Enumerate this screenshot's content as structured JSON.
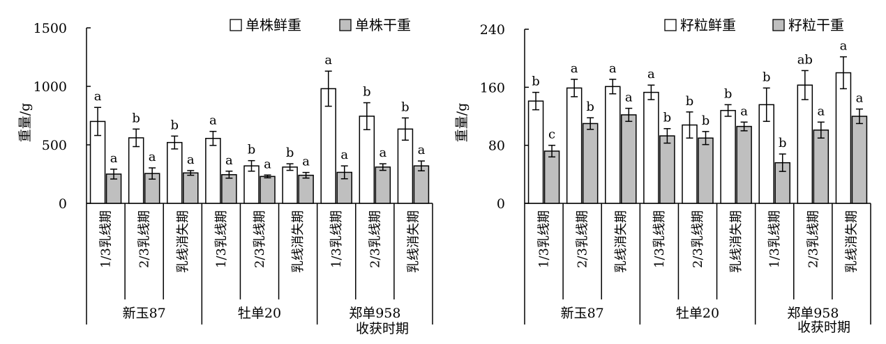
{
  "chart_data": [
    {
      "type": "bar",
      "ylabel": "重量/g",
      "xlabel": "收获时期",
      "ylim": [
        0,
        1500
      ],
      "yticks": [
        "0",
        "500",
        "1000",
        "1500"
      ],
      "groups": [
        "新玉87",
        "牡单20",
        "郑单958"
      ],
      "categories": [
        "1/3乳线期",
        "2/3乳线期",
        "乳线消失期",
        "1/3乳线期",
        "2/3乳线期",
        "乳线消失期",
        "1/3乳线期",
        "2/3乳线期",
        "乳线消失期"
      ],
      "legend_position": "top-right",
      "series": [
        {
          "name": "单株鲜重",
          "color": "#ffffff",
          "values": [
            700,
            560,
            520,
            555,
            320,
            310,
            980,
            745,
            635
          ],
          "err": [
            120,
            75,
            55,
            60,
            45,
            28,
            150,
            115,
            95
          ],
          "sig": [
            "a",
            "b",
            "b",
            "a",
            "b",
            "b",
            "a",
            "b",
            "b"
          ]
        },
        {
          "name": "单株干重",
          "color": "#bfbfbf",
          "values": [
            250,
            255,
            260,
            245,
            230,
            240,
            265,
            310,
            320
          ],
          "err": [
            42,
            48,
            20,
            30,
            12,
            24,
            55,
            28,
            42
          ],
          "sig": [
            "a",
            "a",
            "a",
            "a",
            "a",
            "a",
            "a",
            "a",
            "a"
          ]
        }
      ]
    },
    {
      "type": "bar",
      "ylabel": "重量/g",
      "xlabel": "收获时期",
      "ylim": [
        0,
        240
      ],
      "yticks": [
        "0",
        "80",
        "160",
        "240"
      ],
      "groups": [
        "新玉87",
        "牡单20",
        "郑单958"
      ],
      "categories": [
        "1/3乳线期",
        "2/3乳线期",
        "乳线消失期",
        "1/3乳线期",
        "2/3乳线期",
        "乳线消失期",
        "1/3乳线期",
        "2/3乳线期",
        "乳线消失期"
      ],
      "legend_position": "top-right",
      "series": [
        {
          "name": "籽粒鲜重",
          "color": "#ffffff",
          "values": [
            141,
            159,
            161,
            153,
            108,
            128,
            136,
            163,
            180
          ],
          "err": [
            12,
            12,
            10,
            10,
            18,
            8,
            23,
            20,
            22
          ],
          "sig": [
            "b",
            "a",
            "a",
            "a",
            "b",
            "b",
            "b",
            "ab",
            "a"
          ]
        },
        {
          "name": "籽粒干重",
          "color": "#bfbfbf",
          "values": [
            72,
            110,
            122,
            93,
            90,
            106,
            56,
            101,
            120
          ],
          "err": [
            8,
            8,
            9,
            10,
            9,
            6,
            12,
            11,
            10
          ],
          "sig": [
            "c",
            "b",
            "a",
            "b",
            "b",
            "a",
            "b",
            "a",
            "a"
          ]
        }
      ]
    }
  ]
}
